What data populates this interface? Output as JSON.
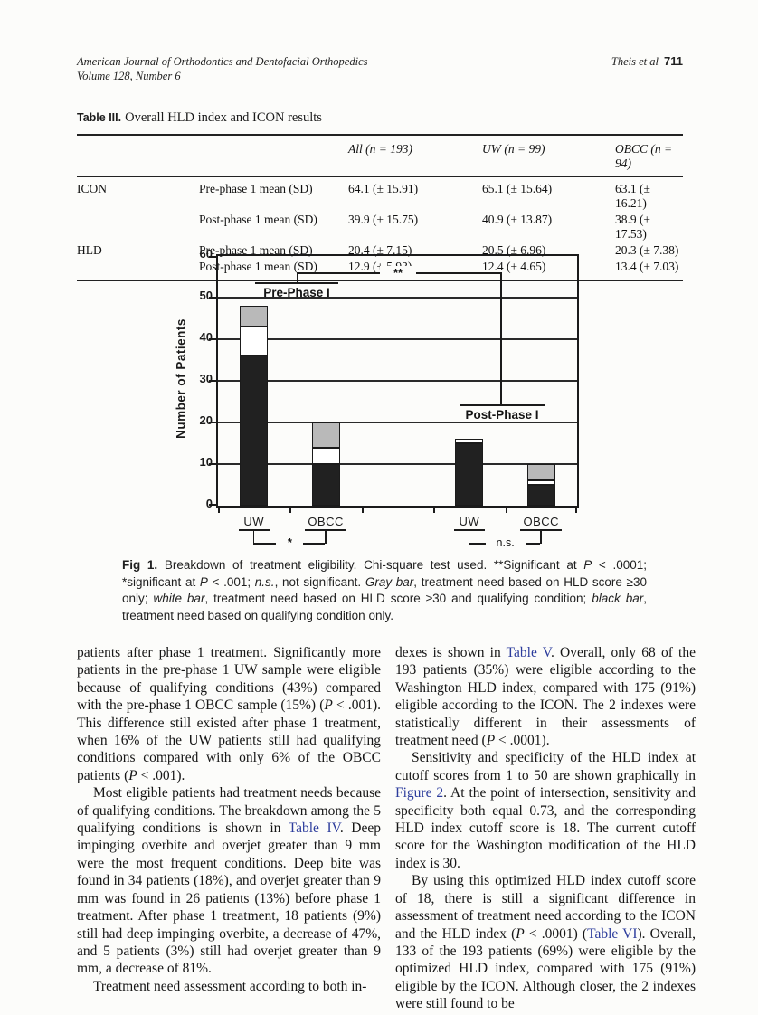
{
  "header": {
    "journal_line1": "American Journal of Orthodontics and Dentofacial Orthopedics",
    "journal_line2": "Volume 128, Number 6",
    "authors": "Theis et al",
    "page_number": "711"
  },
  "table3": {
    "label": "Table III.",
    "title": "Overall HLD index and ICON results",
    "columns": [
      "",
      "",
      "All (n = 193)",
      "UW (n = 99)",
      "OBCC (n = 94)"
    ],
    "rows": [
      [
        "ICON",
        "Pre-phase 1 mean (SD)",
        "64.1 (± 15.91)",
        "65.1 (± 15.64)",
        "63.1 (± 16.21)"
      ],
      [
        "",
        "Post-phase 1 mean (SD)",
        "39.9 (± 15.75)",
        "40.9 (± 13.87)",
        "38.9 (± 17.53)"
      ],
      [
        "HLD",
        "Pre-phase 1 mean (SD)",
        "20.4 (± 7.15)",
        "20.5 (± 6.96)",
        "20.3 (± 7.38)"
      ],
      [
        "",
        "Post-phase 1 mean (SD)",
        "12.9 (± 5.93)",
        "12.4 (± 4.65)",
        "13.4 (± 7.03)"
      ]
    ]
  },
  "chart_data": {
    "type": "bar",
    "stacked": true,
    "ylabel": "Number of Patients",
    "xlabel": "",
    "ylim": [
      0,
      60
    ],
    "yticks": [
      0,
      10,
      20,
      30,
      40,
      50,
      60
    ],
    "grid": true,
    "slots": 5,
    "groups": [
      {
        "label": "UW",
        "phase": "Pre-Phase I",
        "slot": 0,
        "black": 36,
        "white": 7,
        "gray": 5,
        "total": 48
      },
      {
        "label": "OBCC",
        "phase": "Pre-Phase I",
        "slot": 1,
        "black": 10,
        "white": 4,
        "gray": 6,
        "total": 20
      },
      {
        "label": "UW",
        "phase": "Post-Phase I",
        "slot": 3,
        "black": 15,
        "white": 1,
        "gray": 0,
        "total": 16
      },
      {
        "label": "OBCC",
        "phase": "Post-Phase I",
        "slot": 4,
        "black": 5,
        "white": 1,
        "gray": 4,
        "total": 10
      }
    ],
    "series_legend": [
      {
        "name": "black bar",
        "meaning": "treatment need based on qualifying condition only",
        "color": "#212121"
      },
      {
        "name": "white bar",
        "meaning": "treatment need based on HLD score ≥30 and qualifying condition",
        "color": "#ffffff"
      },
      {
        "name": "gray bar",
        "meaning": "treatment need based on HLD score ≥30 only",
        "color": "#b9b9b9"
      }
    ],
    "annotations": {
      "pre_label": "Pre-Phase I",
      "post_label": "Post-Phase I",
      "top_sig": "**",
      "pre_group_sig": "*",
      "post_group_sig": "n.s."
    },
    "colors": {
      "frame": "#1b1b1b",
      "link_accent": "#2c3c9c"
    }
  },
  "figure_caption": {
    "segments": [
      {
        "t": "Fig 1.",
        "s": "b"
      },
      {
        "t": " Breakdown of treatment eligibility. Chi-square test used. **Significant at ",
        "s": ""
      },
      {
        "t": "P",
        "s": "i"
      },
      {
        "t": " < .0001; *significant at ",
        "s": ""
      },
      {
        "t": "P",
        "s": "i"
      },
      {
        "t": " < .001; ",
        "s": ""
      },
      {
        "t": "n.s.",
        "s": "i"
      },
      {
        "t": ", not significant. ",
        "s": ""
      },
      {
        "t": "Gray bar",
        "s": "i"
      },
      {
        "t": ", treatment need based on HLD score ≥30 only; ",
        "s": ""
      },
      {
        "t": "white bar",
        "s": "i"
      },
      {
        "t": ", treatment need based on HLD score ≥30 and qualifying condition; ",
        "s": ""
      },
      {
        "t": "black bar",
        "s": "i"
      },
      {
        "t": ", treatment need based on qualifying condition only.",
        "s": ""
      }
    ]
  },
  "columns": {
    "left": [
      {
        "indent": false,
        "segs": [
          {
            "t": "patients after phase 1 treatment. Significantly more patients in the pre-phase 1 UW sample were eligible because of qualifying conditions (43%) compared with the pre-phase 1 OBCC sample (15%) (",
            "s": ""
          },
          {
            "t": "P",
            "s": "i"
          },
          {
            "t": " < .001). This difference still existed after phase 1 treatment, when 16% of the UW patients still had qualifying conditions compared with only 6% of the OBCC patients (",
            "s": ""
          },
          {
            "t": "P",
            "s": "i"
          },
          {
            "t": " < .001).",
            "s": ""
          }
        ]
      },
      {
        "indent": true,
        "segs": [
          {
            "t": "Most eligible patients had treatment needs because of qualifying conditions. The breakdown among the 5 qualifying conditions is shown in ",
            "s": ""
          },
          {
            "t": "Table IV",
            "s": "link"
          },
          {
            "t": ". Deep impinging overbite and overjet greater than 9 mm were the most frequent conditions. Deep bite was found in 34 patients (18%), and overjet greater than 9 mm was found in 26 patients (13%) before phase 1 treatment. After phase 1 treatment, 18 patients (9%) still had deep impinging overbite, a decrease of 47%, and 5 patients (3%) still had overjet greater than 9 mm, a decrease of 81%.",
            "s": ""
          }
        ]
      },
      {
        "indent": true,
        "segs": [
          {
            "t": "Treatment need assessment according to both in-",
            "s": ""
          }
        ]
      }
    ],
    "right": [
      {
        "indent": false,
        "segs": [
          {
            "t": "dexes is shown in ",
            "s": ""
          },
          {
            "t": "Table V",
            "s": "link"
          },
          {
            "t": ". Overall, only 68 of the 193 patients (35%) were eligible according to the Washington HLD index, compared with 175 (91%) eligible according to the ICON. The 2 indexes were statistically different in their assessments of treatment need (",
            "s": ""
          },
          {
            "t": "P",
            "s": "i"
          },
          {
            "t": " < .0001).",
            "s": ""
          }
        ]
      },
      {
        "indent": true,
        "segs": [
          {
            "t": "Sensitivity and specificity of the HLD index at cutoff scores from 1 to 50 are shown graphically in ",
            "s": ""
          },
          {
            "t": "Figure 2",
            "s": "link"
          },
          {
            "t": ". At the point of intersection, sensitivity and specificity both equal 0.73, and the corresponding HLD index cutoff score is 18. The current cutoff score for the Washington modification of the HLD index is 30.",
            "s": ""
          }
        ]
      },
      {
        "indent": true,
        "segs": [
          {
            "t": "By using this optimized HLD index cutoff score of 18, there is still a significant difference in assessment of treatment need according to the ICON and the HLD index (",
            "s": ""
          },
          {
            "t": "P",
            "s": "i"
          },
          {
            "t": " < .0001) (",
            "s": ""
          },
          {
            "t": "Table VI",
            "s": "link"
          },
          {
            "t": "). Overall, 133 of the 193 patients (69%) were eligible by the optimized HLD index, compared with 175 (91%) eligible by the ICON. Although closer, the 2 indexes were still found to be",
            "s": ""
          }
        ]
      }
    ]
  }
}
